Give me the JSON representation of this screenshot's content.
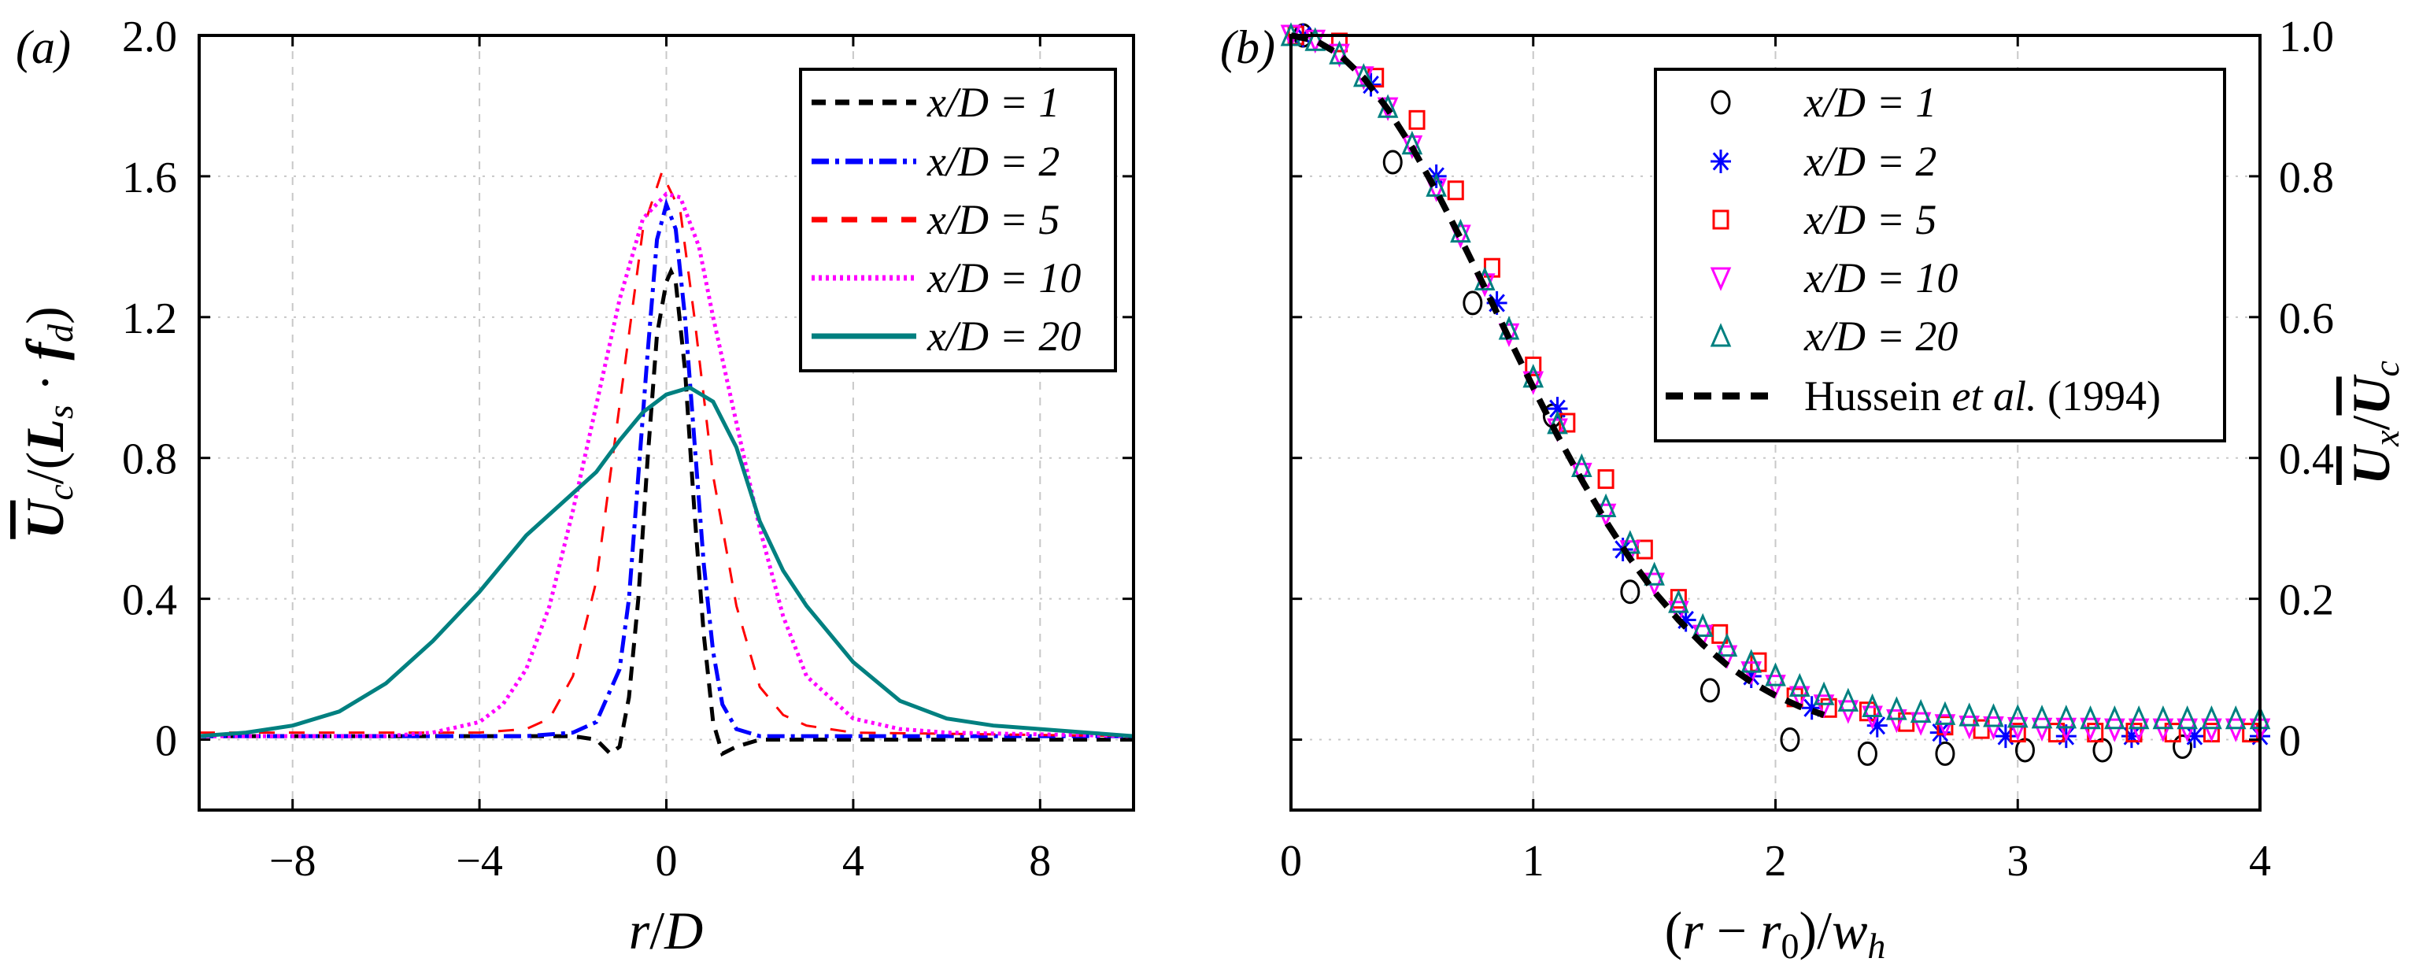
{
  "chart_data": [
    {
      "panel_label": "(a)",
      "type": "line",
      "xlabel_parts": [
        "r",
        "/",
        "D"
      ],
      "ylabel_parts": [
        "U",
        "c",
        "/(",
        "L",
        "s",
        " · ",
        "f",
        "d",
        ")"
      ],
      "xlim": [
        -10,
        10
      ],
      "ylim": [
        -0.2,
        2.0
      ],
      "xticks": [
        -8,
        -4,
        0,
        4,
        8
      ],
      "xtick_labels": [
        "−8",
        "−4",
        "0",
        "4",
        "8"
      ],
      "yticks": [
        0,
        0.4,
        0.8,
        1.2,
        1.6,
        2.0
      ],
      "ytick_labels": [
        "0",
        "0.4",
        "0.8",
        "1.2",
        "1.6",
        "2.0"
      ],
      "grid": true,
      "legend_position": "top-right",
      "series": [
        {
          "name": "x/D = 1",
          "color": "#000000",
          "style": "dashed",
          "x": [
            -10,
            -4,
            -2,
            -1.5,
            -1.2,
            -1,
            -0.8,
            -0.6,
            -0.4,
            -0.2,
            0,
            0.1,
            0.2,
            0.4,
            0.6,
            0.8,
            1,
            1.2,
            1.5,
            2,
            4,
            10
          ],
          "y": [
            0.01,
            0.01,
            0.01,
            0,
            -0.04,
            -0.02,
            0.12,
            0.4,
            0.8,
            1.15,
            1.3,
            1.33,
            1.3,
            1.05,
            0.65,
            0.3,
            0.05,
            -0.04,
            -0.02,
            0,
            0,
            0
          ]
        },
        {
          "name": "x/D = 2",
          "color": "#0000ff",
          "style": "dash-dot",
          "x": [
            -10,
            -3,
            -2,
            -1.5,
            -1,
            -0.8,
            -0.6,
            -0.4,
            -0.2,
            0,
            0.2,
            0.4,
            0.6,
            0.8,
            1,
            1.2,
            1.5,
            2,
            3,
            10
          ],
          "y": [
            0.01,
            0.01,
            0.02,
            0.05,
            0.2,
            0.4,
            0.75,
            1.1,
            1.42,
            1.52,
            1.45,
            1.2,
            0.85,
            0.5,
            0.25,
            0.1,
            0.03,
            0.01,
            0.01,
            0.01
          ]
        },
        {
          "name": "x/D = 5",
          "color": "#ff0000",
          "style": "long-dashed",
          "x": [
            -10,
            -4,
            -3,
            -2.5,
            -2,
            -1.5,
            -1,
            -0.5,
            -0.1,
            0.3,
            0.6,
            1,
            1.5,
            2,
            2.5,
            3,
            4,
            10
          ],
          "y": [
            0.02,
            0.02,
            0.03,
            0.06,
            0.18,
            0.45,
            0.95,
            1.45,
            1.61,
            1.5,
            1.2,
            0.75,
            0.38,
            0.15,
            0.07,
            0.04,
            0.02,
            0.01
          ]
        },
        {
          "name": "x/D = 10",
          "color": "#ff00ff",
          "style": "dotted",
          "x": [
            -10,
            -6,
            -5,
            -4,
            -3.5,
            -3,
            -2.5,
            -2,
            -1.5,
            -1,
            -0.5,
            0,
            0.3,
            0.7,
            1,
            1.5,
            2,
            2.5,
            3,
            4,
            5,
            6,
            10
          ],
          "y": [
            0.01,
            0.01,
            0.02,
            0.05,
            0.1,
            0.2,
            0.38,
            0.65,
            0.95,
            1.25,
            1.48,
            1.55,
            1.54,
            1.4,
            1.2,
            0.9,
            0.6,
            0.35,
            0.18,
            0.06,
            0.03,
            0.02,
            0.01
          ]
        },
        {
          "name": "x/D = 20",
          "color": "#008080",
          "style": "solid",
          "x": [
            -10,
            -9,
            -8,
            -7,
            -6,
            -5,
            -4,
            -3,
            -2,
            -1.5,
            -1,
            -0.5,
            0,
            0.5,
            1,
            1.5,
            2,
            2.5,
            3,
            4,
            5,
            6,
            7,
            8,
            9,
            10
          ],
          "y": [
            0.01,
            0.02,
            0.04,
            0.08,
            0.16,
            0.28,
            0.42,
            0.58,
            0.7,
            0.76,
            0.85,
            0.93,
            0.98,
            1.0,
            0.96,
            0.83,
            0.62,
            0.48,
            0.38,
            0.22,
            0.11,
            0.06,
            0.04,
            0.03,
            0.02,
            0.01
          ]
        }
      ]
    },
    {
      "panel_label": "(b)",
      "type": "scatter",
      "xlabel_parts": [
        "(",
        "r",
        " − ",
        "r",
        "0",
        ")/",
        "w",
        "h"
      ],
      "ylabel_parts": [
        "U",
        "x",
        "/",
        "U",
        "c"
      ],
      "xlim": [
        0,
        4
      ],
      "ylim": [
        -0.1,
        1.0
      ],
      "xticks": [
        0,
        1,
        2,
        3,
        4
      ],
      "xtick_labels": [
        "0",
        "1",
        "2",
        "3",
        "4"
      ],
      "yticks": [
        0,
        0.2,
        0.4,
        0.6,
        0.8,
        1.0
      ],
      "ytick_labels": [
        "0",
        "0.2",
        "0.4",
        "0.6",
        "0.8",
        "1.0"
      ],
      "y_axis_side": "right",
      "grid": true,
      "legend_position": "top-right",
      "series": [
        {
          "name": "x/D = 1",
          "color": "#000000",
          "marker": "circle",
          "x": [
            0.05,
            0.42,
            0.75,
            1.08,
            1.4,
            1.73,
            2.06,
            2.38,
            2.7,
            3.03,
            3.35,
            3.68
          ],
          "y": [
            1.0,
            0.82,
            0.62,
            0.46,
            0.21,
            0.07,
            0.0,
            -0.02,
            -0.02,
            -0.015,
            -0.015,
            -0.01
          ]
        },
        {
          "name": "x/D = 2",
          "color": "#0000ff",
          "marker": "star",
          "x": [
            0.05,
            0.33,
            0.6,
            0.85,
            1.1,
            1.37,
            1.63,
            1.9,
            2.15,
            2.42,
            2.68,
            2.95,
            3.2,
            3.47,
            3.73,
            4.0
          ],
          "y": [
            1.0,
            0.93,
            0.8,
            0.62,
            0.47,
            0.27,
            0.17,
            0.09,
            0.045,
            0.02,
            0.01,
            0.005,
            0.005,
            0.005,
            0.005,
            0.005
          ]
        },
        {
          "name": "x/D = 5",
          "color": "#ff0000",
          "marker": "square",
          "x": [
            0.02,
            0.2,
            0.35,
            0.52,
            0.68,
            0.83,
            1.0,
            1.14,
            1.3,
            1.46,
            1.6,
            1.77,
            1.93,
            2.08,
            2.22,
            2.38,
            2.54,
            2.7,
            2.85,
            3.0,
            3.16,
            3.32,
            3.48,
            3.64,
            3.8,
            3.96
          ],
          "y": [
            1.0,
            0.99,
            0.94,
            0.88,
            0.78,
            0.67,
            0.53,
            0.45,
            0.37,
            0.27,
            0.2,
            0.15,
            0.11,
            0.06,
            0.045,
            0.04,
            0.025,
            0.02,
            0.015,
            0.01,
            0.01,
            0.01,
            0.01,
            0.01,
            0.01,
            0.01
          ]
        },
        {
          "name": "x/D = 10",
          "color": "#ff00ff",
          "marker": "triangle-down",
          "x": [
            0,
            0.1,
            0.2,
            0.3,
            0.4,
            0.5,
            0.6,
            0.7,
            0.8,
            0.9,
            1.0,
            1.1,
            1.2,
            1.3,
            1.4,
            1.5,
            1.6,
            1.7,
            1.8,
            1.9,
            2.0,
            2.1,
            2.2,
            2.3,
            2.4,
            2.5,
            2.6,
            2.7,
            2.8,
            2.9,
            3.0,
            3.1,
            3.2,
            3.3,
            3.4,
            3.5,
            3.6,
            3.7,
            3.8,
            3.9,
            4.0
          ],
          "y": [
            1,
            0.993,
            0.973,
            0.941,
            0.897,
            0.843,
            0.782,
            0.716,
            0.647,
            0.576,
            0.508,
            0.441,
            0.378,
            0.32,
            0.268,
            0.222,
            0.182,
            0.148,
            0.119,
            0.096,
            0.077,
            0.061,
            0.049,
            0.041,
            0.033,
            0.028,
            0.024,
            0.021,
            0.019,
            0.018,
            0.017,
            0.016,
            0.016,
            0.016,
            0.015,
            0.015,
            0.015,
            0.015,
            0.015,
            0.015,
            0.015
          ]
        },
        {
          "name": "x/D = 20",
          "color": "#008080",
          "marker": "triangle-up",
          "x": [
            0,
            0.1,
            0.2,
            0.3,
            0.4,
            0.5,
            0.6,
            0.7,
            0.8,
            0.9,
            1.0,
            1.1,
            1.2,
            1.3,
            1.4,
            1.5,
            1.6,
            1.7,
            1.8,
            1.9,
            2.0,
            2.1,
            2.2,
            2.3,
            2.4,
            2.5,
            2.6,
            2.7,
            2.8,
            2.9,
            3.0,
            3.1,
            3.2,
            3.3,
            3.4,
            3.5,
            3.6,
            3.7,
            3.8,
            3.9,
            4.0
          ],
          "y": [
            1,
            0.993,
            0.974,
            0.942,
            0.898,
            0.846,
            0.786,
            0.721,
            0.653,
            0.583,
            0.515,
            0.449,
            0.388,
            0.331,
            0.279,
            0.234,
            0.195,
            0.161,
            0.133,
            0.11,
            0.091,
            0.076,
            0.064,
            0.055,
            0.047,
            0.043,
            0.039,
            0.036,
            0.034,
            0.033,
            0.032,
            0.031,
            0.031,
            0.03,
            0.03,
            0.03,
            0.03,
            0.03,
            0.03,
            0.03,
            0.03
          ]
        },
        {
          "name": "Hussein et al. (1994)",
          "name_parts": [
            "Hussein ",
            "et al.",
            " (1994)"
          ],
          "color": "#000000",
          "style": "dashed",
          "marker": "none",
          "x": [
            0,
            0.1,
            0.2,
            0.3,
            0.4,
            0.5,
            0.6,
            0.7,
            0.8,
            0.9,
            1.0,
            1.1,
            1.2,
            1.3,
            1.4,
            1.5,
            1.6,
            1.7,
            1.8,
            1.9,
            2.0,
            2.1,
            2.2
          ],
          "y": [
            1,
            0.993,
            0.973,
            0.94,
            0.895,
            0.841,
            0.779,
            0.712,
            0.642,
            0.57,
            0.5,
            0.432,
            0.369,
            0.31,
            0.257,
            0.21,
            0.17,
            0.135,
            0.106,
            0.082,
            0.0625,
            0.047,
            0.035
          ]
        }
      ]
    }
  ]
}
